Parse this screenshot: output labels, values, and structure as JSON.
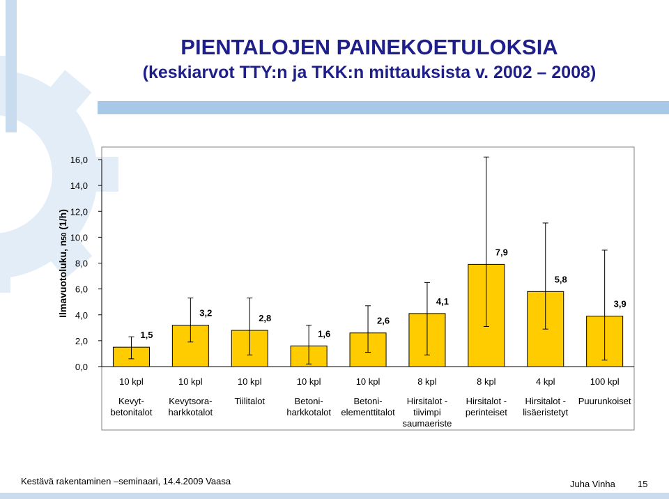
{
  "slide": {
    "title": "PIENTALOJEN PAINEKOETULOKSIA",
    "subtitle": "(keskiarvot TTY:n ja TKK:n mittauksista v. 2002 – 2008)",
    "footer_event": "Kestävä rakentaminen –seminaari, 14.4.2009 Vaasa",
    "footer_author": "Juha Vinha",
    "page_number": "15"
  },
  "colors": {
    "bar_fill": "#ffcc00",
    "bar_stroke": "#000000",
    "title": "#1f1f8c",
    "decor_gear": "#e3edf7",
    "decor_stripe": "#a8c8e8"
  },
  "chart_data": {
    "type": "bar",
    "ylabel": "Ilmavuotoluku, n50 (1/h)",
    "ylabel_main": "Ilmavuotoluku, n",
    "ylabel_sub": "50",
    "ylabel_unit": " (1/h)",
    "ylim": [
      0,
      16
    ],
    "yticks": [
      "0,0",
      "2,0",
      "4,0",
      "6,0",
      "8,0",
      "10,0",
      "12,0",
      "14,0",
      "16,0"
    ],
    "grid": false,
    "categories": [
      [
        "Kevyt-",
        "betonitalot"
      ],
      [
        "Kevytsora-",
        "harkkotalot"
      ],
      [
        "Tiilitalot"
      ],
      [
        "Betoni-",
        "harkkotalot"
      ],
      [
        "Betoni-",
        "elementtitalot"
      ],
      [
        "Hirsitalot -",
        "tiivimpi",
        "saumaeriste"
      ],
      [
        "Hirsitalot -",
        "perinteiset"
      ],
      [
        "Hirsitalot -",
        "lisäeristetyt"
      ],
      [
        "Puurunkoiset"
      ]
    ],
    "counts": [
      "10 kpl",
      "10 kpl",
      "10 kpl",
      "10 kpl",
      "10 kpl",
      "8 kpl",
      "8 kpl",
      "4 kpl",
      "100 kpl"
    ],
    "values": [
      1.5,
      3.2,
      2.8,
      1.6,
      2.6,
      4.1,
      7.9,
      5.8,
      3.9
    ],
    "value_labels": [
      "1,5",
      "3,2",
      "2,8",
      "1,6",
      "2,6",
      "4,1",
      "7,9",
      "5,8",
      "3,9"
    ],
    "ranges": [
      [
        0.6,
        2.3
      ],
      [
        1.9,
        5.3
      ],
      [
        0.9,
        5.3
      ],
      [
        0.2,
        3.2
      ],
      [
        1.1,
        4.7
      ],
      [
        0.9,
        6.5
      ],
      [
        3.1,
        16.2
      ],
      [
        2.9,
        11.1
      ],
      [
        0.5,
        9.0
      ]
    ]
  }
}
